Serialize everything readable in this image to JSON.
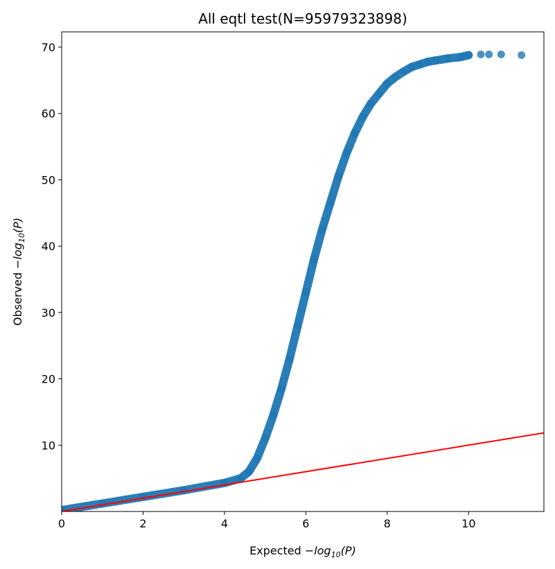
{
  "chart_data": {
    "type": "scatter",
    "title": "All eqtl test(N=95979323898)",
    "xlabel": "Expected −log10(P)",
    "ylabel": "Observed −log10(P)",
    "xlabel_parts": {
      "pre": "Expected −",
      "log": "log",
      "sub": "10",
      "post": "(P)"
    },
    "ylabel_parts": {
      "pre": "Observed −",
      "log": "log",
      "sub": "10",
      "post": "(P)"
    },
    "xlim": [
      0,
      11.85
    ],
    "ylim": [
      0,
      72.3
    ],
    "xticks": [
      0,
      2,
      4,
      6,
      8,
      10
    ],
    "yticks": [
      10,
      20,
      30,
      40,
      50,
      60,
      70
    ],
    "grid": false,
    "legend": "none",
    "series": [
      {
        "kind": "points",
        "color": "#1f77b4",
        "curve_x": [
          0,
          1,
          2,
          3,
          4,
          4.4,
          4.6,
          4.8,
          5.0,
          5.2,
          5.4,
          5.6,
          5.8,
          6.0,
          6.2,
          6.4,
          6.6,
          6.8,
          7.0,
          7.2,
          7.4,
          7.6,
          7.8,
          8.0,
          8.2,
          8.4,
          8.6,
          8.8,
          9.0,
          9.2,
          9.5,
          9.8,
          10.0
        ],
        "curve_y": [
          0.2,
          1.2,
          2.2,
          3.2,
          4.3,
          5.0,
          6.0,
          8.0,
          11.0,
          14.5,
          18.5,
          23.0,
          28.0,
          33.0,
          38.0,
          42.5,
          46.5,
          50.5,
          54.0,
          57.0,
          59.5,
          61.5,
          63.0,
          64.5,
          65.5,
          66.3,
          67.0,
          67.4,
          67.8,
          68.0,
          68.3,
          68.5,
          68.8
        ],
        "tail_x": [
          10.3,
          10.5,
          10.8,
          11.3
        ],
        "tail_y": [
          68.9,
          68.9,
          68.9,
          68.8
        ]
      },
      {
        "kind": "line",
        "color": "#ff0000",
        "x": [
          0,
          11.85
        ],
        "y": [
          0,
          11.85
        ]
      }
    ]
  }
}
